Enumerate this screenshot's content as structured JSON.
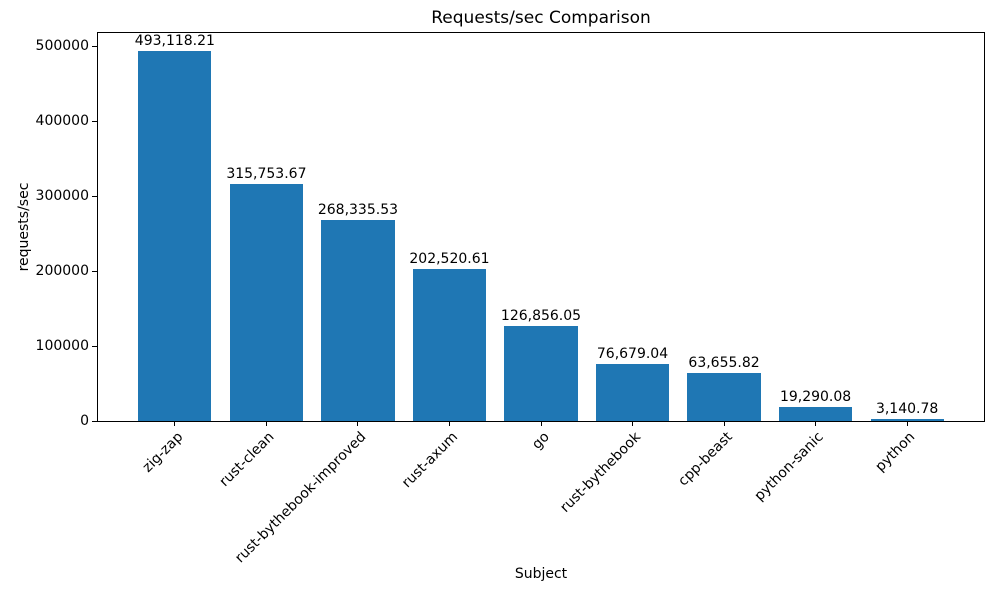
{
  "chart_data": {
    "type": "bar",
    "title": "Requests/sec Comparison",
    "xlabel": "Subject",
    "ylabel": "requests/sec",
    "categories": [
      "zig-zap",
      "rust-clean",
      "rust-bythebook-improved",
      "rust-axum",
      "go",
      "rust-bythebook",
      "cpp-beast",
      "python-sanic",
      "python"
    ],
    "values": [
      493118.21,
      315753.67,
      268335.53,
      202520.61,
      126856.05,
      76679.04,
      63655.82,
      19290.08,
      3140.78
    ],
    "value_labels": [
      "493,118.21",
      "315,753.67",
      "268,335.53",
      "202,520.61",
      "126,856.05",
      "76,679.04",
      "63,655.82",
      "19,290.08",
      "3,140.78"
    ],
    "bar_color": "#1f77b4",
    "ylim": [
      0,
      517774
    ],
    "yticks": [
      0,
      100000,
      200000,
      300000,
      400000,
      500000
    ],
    "ytick_labels": [
      "0",
      "100000",
      "200000",
      "300000",
      "400000",
      "500000"
    ],
    "xtick_rotation_deg": 45,
    "grid": false,
    "legend_position": "none"
  }
}
